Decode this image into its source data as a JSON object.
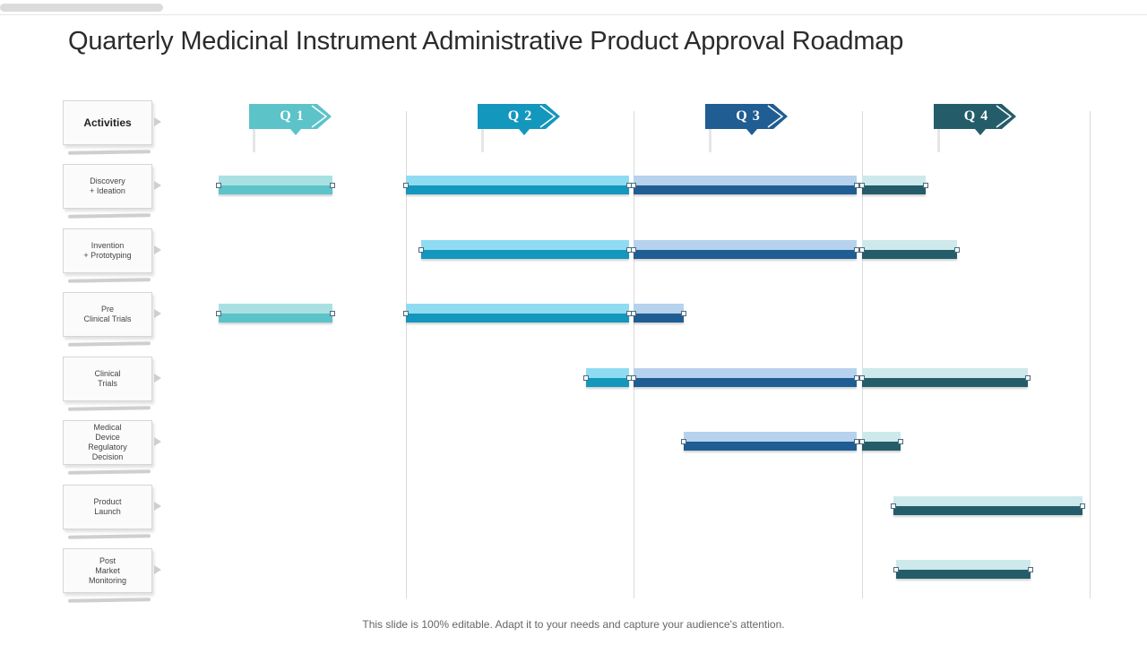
{
  "title": "Quarterly Medicinal Instrument Administrative Product Approval Roadmap",
  "footer": "This slide is 100% editable. Adapt it to your needs and capture your audience's attention.",
  "quarters": [
    {
      "label": "Q 1",
      "color": "#5cc3c9"
    },
    {
      "label": "Q 2",
      "color": "#1497bd"
    },
    {
      "label": "Q 3",
      "color": "#1f5d93"
    },
    {
      "label": "Q 4",
      "color": "#245d69"
    }
  ],
  "activities_header": "Activities",
  "activities": [
    {
      "lines": [
        "Discovery",
        "+ Ideation"
      ]
    },
    {
      "lines": [
        "Invention",
        "+ Prototyping"
      ]
    },
    {
      "lines": [
        "Pre",
        "Clinical Trials"
      ]
    },
    {
      "lines": [
        "Clinical",
        "Trials"
      ]
    },
    {
      "lines": [
        "Medical",
        "Device",
        "Regulatory",
        "Decision"
      ]
    },
    {
      "lines": [
        "Product",
        "Launch"
      ]
    },
    {
      "lines": [
        "Post",
        "Market",
        "Monitoring"
      ]
    }
  ],
  "chart_data": {
    "type": "gantt",
    "title": "Quarterly Medicinal Instrument Administrative Product Approval Roadmap",
    "x_axis": {
      "unit": "quarter",
      "range": [
        0,
        4
      ],
      "ticks": [
        "Q 1",
        "Q 2",
        "Q 3",
        "Q 4"
      ]
    },
    "rows": [
      {
        "activity": "Discovery + Ideation",
        "segments": [
          {
            "quarter": 1,
            "start": 0.18,
            "end": 0.68
          },
          {
            "quarter": 2,
            "start": 1.0,
            "end": 1.98
          },
          {
            "quarter": 3,
            "start": 2.0,
            "end": 2.98
          },
          {
            "quarter": 4,
            "start": 3.0,
            "end": 3.28
          }
        ]
      },
      {
        "activity": "Invention + Prototyping",
        "segments": [
          {
            "quarter": 2,
            "start": 1.07,
            "end": 1.98
          },
          {
            "quarter": 3,
            "start": 2.0,
            "end": 2.98
          },
          {
            "quarter": 4,
            "start": 3.0,
            "end": 3.42
          }
        ]
      },
      {
        "activity": "Pre Clinical Trials",
        "segments": [
          {
            "quarter": 1,
            "start": 0.18,
            "end": 0.68
          },
          {
            "quarter": 2,
            "start": 1.0,
            "end": 1.98
          },
          {
            "quarter": 3,
            "start": 2.0,
            "end": 2.22
          }
        ]
      },
      {
        "activity": "Clinical Trials",
        "segments": [
          {
            "quarter": 2,
            "start": 1.79,
            "end": 1.98
          },
          {
            "quarter": 3,
            "start": 2.0,
            "end": 2.98
          },
          {
            "quarter": 4,
            "start": 3.0,
            "end": 3.73
          }
        ]
      },
      {
        "activity": "Medical Device Regulatory Decision",
        "segments": [
          {
            "quarter": 3,
            "start": 2.22,
            "end": 2.98
          },
          {
            "quarter": 4,
            "start": 3.0,
            "end": 3.17
          }
        ]
      },
      {
        "activity": "Product Launch",
        "segments": [
          {
            "quarter": 4,
            "start": 3.14,
            "end": 3.97
          }
        ]
      },
      {
        "activity": "Post Market Monitoring",
        "segments": [
          {
            "quarter": 4,
            "start": 3.15,
            "end": 3.74
          }
        ]
      }
    ]
  }
}
